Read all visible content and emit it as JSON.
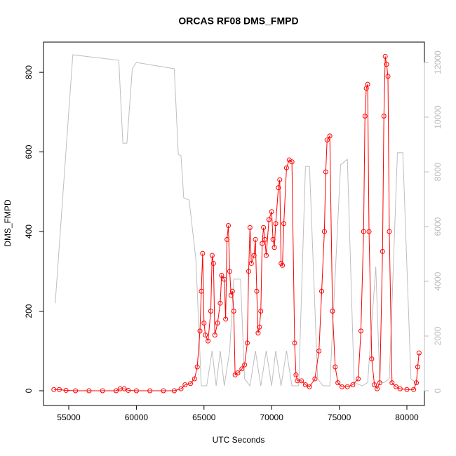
{
  "chart_data": {
    "type": "line",
    "title": "ORCAS RF08 DMS_FMPD",
    "x_label": "UTC Seconds",
    "y_label": "DMS_FMPD",
    "xlim": [
      53133,
      81297
    ],
    "xticks": [
      55000,
      60000,
      65000,
      70000,
      75000,
      80000
    ],
    "ylim": [
      -37,
      876
    ],
    "yticks": [
      0,
      200,
      400,
      600,
      800
    ],
    "y2lim": [
      -538,
      12744
    ],
    "y2ticks": [
      0,
      2000,
      4000,
      6000,
      8000,
      10000,
      12000
    ],
    "series": [
      {
        "color": "#bebebe",
        "axis": "y2",
        "style": "line",
        "x": [
          54000,
          55300,
          58700,
          59000,
          59300,
          59700,
          60000,
          62800,
          63100,
          63300,
          63500,
          63900,
          64400,
          64800,
          65200,
          65600,
          65900,
          66200,
          66500,
          66900,
          67200,
          67700,
          68000,
          68400,
          68800,
          69200,
          69600,
          70000,
          70300,
          70700,
          71100,
          71500,
          72000,
          72500,
          72800,
          73400,
          73800,
          74300,
          75100,
          75600,
          76100,
          76700,
          77100,
          77700,
          78000,
          78300,
          78700,
          79300,
          79700,
          80300,
          80800
        ],
        "values": [
          3200,
          12280,
          12080,
          9050,
          9050,
          11770,
          12000,
          11770,
          8640,
          8590,
          7050,
          6970,
          4800,
          180,
          180,
          1460,
          180,
          1460,
          180,
          1460,
          4080,
          4080,
          440,
          180,
          1460,
          180,
          1460,
          180,
          1460,
          180,
          1460,
          180,
          180,
          8200,
          8200,
          440,
          180,
          180,
          8260,
          8460,
          300,
          180,
          300,
          4540,
          300,
          300,
          440,
          8700,
          8700,
          440,
          230
        ]
      },
      {
        "color": "#ff0000",
        "style": "both",
        "x": [
          53900,
          54300,
          54800,
          55500,
          56500,
          57500,
          58500,
          58800,
          59100,
          59400,
          60000,
          61000,
          62000,
          62800,
          63300,
          63600,
          64000,
          64300,
          64500,
          64700,
          64800,
          64900,
          65000,
          65100,
          65300,
          65500,
          65600,
          65700,
          65800,
          66000,
          66200,
          66300,
          66500,
          66600,
          66700,
          66800,
          66900,
          67000,
          67100,
          67200,
          67300,
          67500,
          67800,
          68000,
          68200,
          68300,
          68400,
          68500,
          68700,
          68800,
          68900,
          69000,
          69100,
          69200,
          69300,
          69400,
          69500,
          69600,
          69800,
          70000,
          70100,
          70200,
          70300,
          70500,
          70600,
          70700,
          70800,
          70900,
          71100,
          71300,
          71500,
          71700,
          71800,
          71900,
          72200,
          72500,
          72800,
          73200,
          73500,
          73700,
          73900,
          74000,
          74100,
          74300,
          74500,
          74700,
          74900,
          75200,
          75600,
          76000,
          76400,
          76600,
          76800,
          76900,
          77000,
          77100,
          77200,
          77400,
          77600,
          77800,
          78000,
          78200,
          78300,
          78400,
          78500,
          78600,
          78700,
          78900,
          79200,
          79500,
          80000,
          80500,
          80700,
          80800,
          80900
        ],
        "values": [
          3,
          3,
          1,
          0,
          0,
          0,
          0,
          5,
          5,
          1,
          0,
          0,
          0,
          0,
          5,
          15,
          18,
          30,
          60,
          150,
          250,
          345,
          170,
          140,
          125,
          200,
          340,
          320,
          140,
          170,
          220,
          290,
          280,
          180,
          380,
          415,
          300,
          240,
          250,
          200,
          40,
          45,
          55,
          65,
          120,
          300,
          410,
          320,
          340,
          380,
          250,
          145,
          160,
          200,
          370,
          410,
          380,
          340,
          430,
          450,
          380,
          360,
          420,
          510,
          530,
          320,
          315,
          420,
          560,
          580,
          575,
          120,
          40,
          25,
          25,
          15,
          10,
          30,
          100,
          250,
          400,
          550,
          630,
          640,
          200,
          60,
          20,
          10,
          10,
          15,
          30,
          150,
          400,
          690,
          760,
          770,
          400,
          80,
          15,
          5,
          20,
          350,
          690,
          840,
          820,
          790,
          400,
          20,
          10,
          5,
          3,
          3,
          20,
          60,
          95
        ]
      }
    ]
  }
}
